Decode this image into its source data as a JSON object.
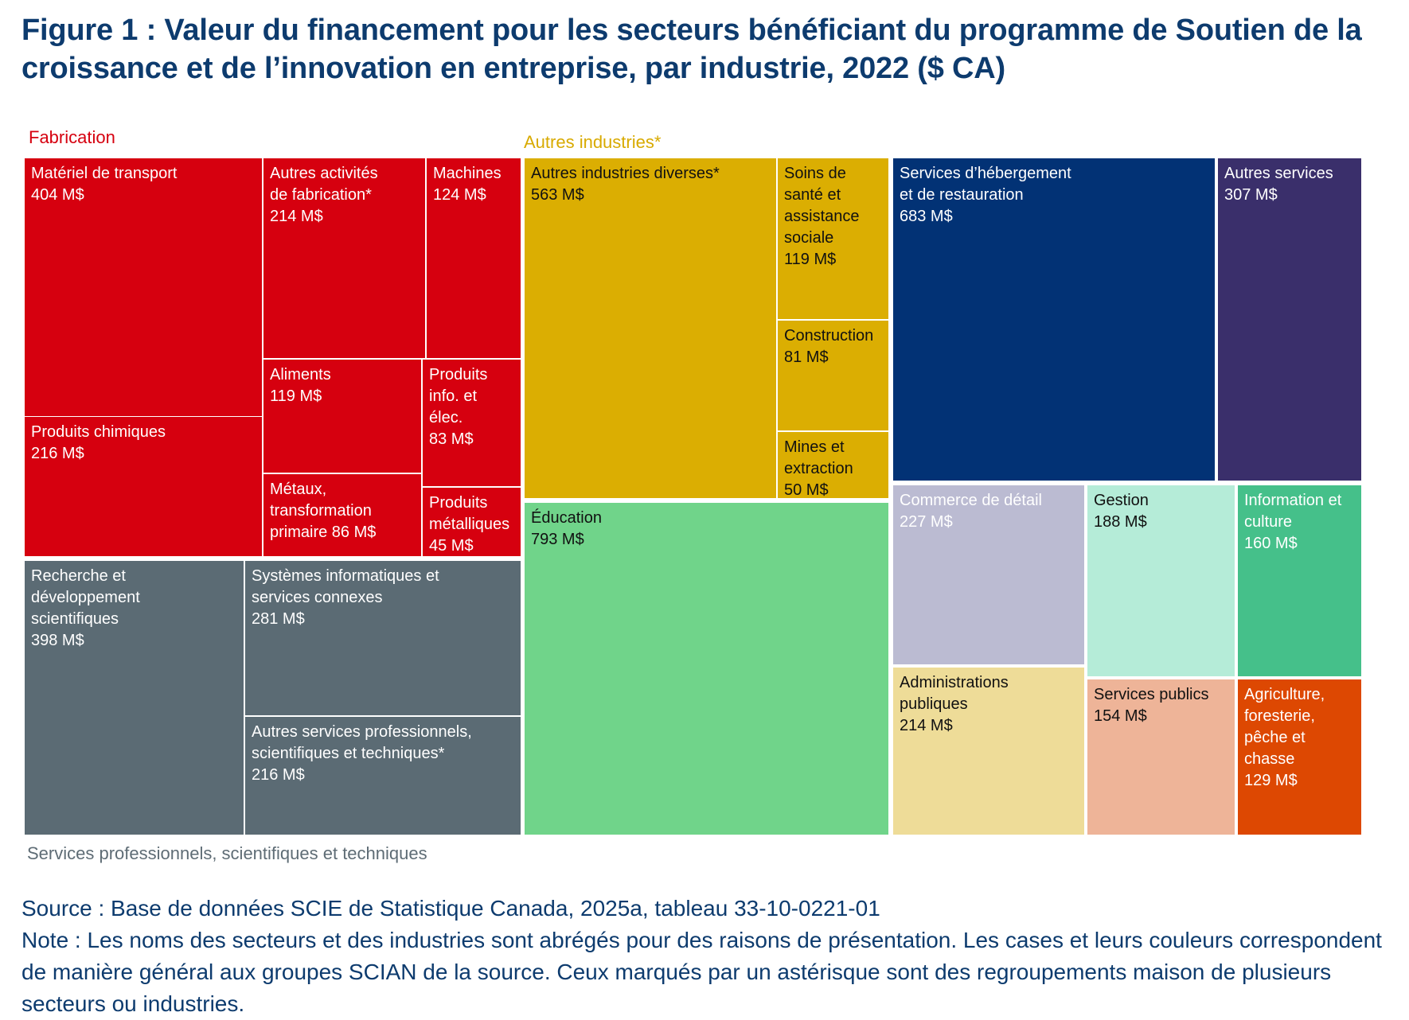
{
  "title": "Figure 1 : Valeur du financement pour les secteurs bénéficiant du programme de Soutien de la croissance et de l’innovation en entreprise, par industrie, 2022 ($ CA)",
  "source": "Source : Base de données SCIE de Statistique Canada, 2025a, tableau 33-10-0221-01",
  "note": "Note : Les noms des secteurs et des industries sont abrégés pour des raisons de présentation. Les cases et leurs couleurs correspondent de manière général aux groupes SCIAN de la source. Ceux marqués par un astérisque sont des regroupements maison de plusieurs secteurs ou industries.",
  "chart_data": {
    "type": "treemap",
    "unit": "M$",
    "groups": [
      {
        "id": "fabrication",
        "name": "Fabrication",
        "label_color": "#d6000f",
        "items": [
          {
            "id": "materiel-transport",
            "lines": [
              "Matériel de transport"
            ],
            "value_text": "404 M$",
            "value": 404,
            "color": "#d6000f",
            "text_color": "#ffffff"
          },
          {
            "id": "produits-chimiques",
            "lines": [
              "Produits chimiques"
            ],
            "value_text": "216 M$",
            "value": 216,
            "color": "#d6000f",
            "text_color": "#ffffff"
          },
          {
            "id": "autres-activites-fabrication",
            "lines": [
              "Autres activités",
              "de fabrication*"
            ],
            "value_text": "214 M$",
            "value": 214,
            "color": "#d6000f",
            "text_color": "#ffffff"
          },
          {
            "id": "machines",
            "lines": [
              "Machines"
            ],
            "value_text": "124 M$",
            "value": 124,
            "color": "#d6000f",
            "text_color": "#ffffff"
          },
          {
            "id": "aliments",
            "lines": [
              "Aliments"
            ],
            "value_text": "119 M$",
            "value": 119,
            "color": "#d6000f",
            "text_color": "#ffffff"
          },
          {
            "id": "produits-info-elec",
            "lines": [
              "Produits",
              "info. et élec."
            ],
            "value_text": "83 M$",
            "value": 83,
            "color": "#d6000f",
            "text_color": "#ffffff"
          },
          {
            "id": "metaux",
            "lines": [
              "Métaux,",
              "transformation"
            ],
            "value_text": "primaire 86 M$",
            "value": 86,
            "color": "#d6000f",
            "text_color": "#ffffff"
          },
          {
            "id": "produits-metalliques",
            "lines": [
              "Produits",
              "métalliques"
            ],
            "value_text": "45 M$",
            "value": 45,
            "color": "#d6000f",
            "text_color": "#ffffff"
          }
        ]
      },
      {
        "id": "services-professionnels",
        "name": "Services professionnels, scientifiques et techniques",
        "label_color": "#5e6c75",
        "items": [
          {
            "id": "recherche-developpement",
            "lines": [
              "Recherche et",
              "développement",
              "scientifiques"
            ],
            "value_text": "398 M$",
            "value": 398,
            "color": "#5b6b74",
            "text_color": "#ffffff"
          },
          {
            "id": "systemes-informatiques",
            "lines": [
              "Systèmes informatiques et",
              "services connexes"
            ],
            "value_text": "281 M$",
            "value": 281,
            "color": "#5b6b74",
            "text_color": "#ffffff"
          },
          {
            "id": "autres-services-professionnels",
            "lines": [
              "Autres services professionnels,",
              "scientifiques et techniques*"
            ],
            "value_text": "216 M$",
            "value": 216,
            "color": "#5b6b74",
            "text_color": "#ffffff"
          }
        ]
      },
      {
        "id": "autres-industries",
        "name": "Autres industries*",
        "label_color": "#d8aa00",
        "items": [
          {
            "id": "autres-industries-diverses",
            "lines": [
              "Autres industries diverses*"
            ],
            "value_text": "563 M$",
            "value": 563,
            "color": "#dbae02",
            "text_color": "#111111"
          },
          {
            "id": "soins-sante",
            "lines": [
              "Soins de",
              "santé et",
              "assistance",
              "sociale"
            ],
            "value_text": "119 M$",
            "value": 119,
            "color": "#dbae02",
            "text_color": "#111111"
          },
          {
            "id": "construction",
            "lines": [
              "Construction"
            ],
            "value_text": "81 M$",
            "value": 81,
            "color": "#dbae02",
            "text_color": "#111111"
          },
          {
            "id": "mines-extraction",
            "lines": [
              "Mines et",
              "extraction"
            ],
            "value_text": "50 M$",
            "value": 50,
            "color": "#dbae02",
            "text_color": "#111111"
          },
          {
            "id": "education",
            "lines": [
              "Éducation"
            ],
            "value_text": "793 M$",
            "value": 793,
            "color": "#70d48a",
            "text_color": "#111111"
          },
          {
            "id": "hebergement-restauration",
            "lines": [
              "Services d’hébergement",
              "et de restauration"
            ],
            "value_text": "683 M$",
            "value": 683,
            "color": "#023275",
            "text_color": "#ffffff"
          },
          {
            "id": "autres-services",
            "lines": [
              "Autres services"
            ],
            "value_text": "307 M$",
            "value": 307,
            "color": "#3a2f6b",
            "text_color": "#ffffff"
          },
          {
            "id": "commerce-detail",
            "lines": [
              "Commerce de détail"
            ],
            "value_text": "227 M$",
            "value": 227,
            "color": "#bbbbd2",
            "text_color": "#ffffff"
          },
          {
            "id": "gestion",
            "lines": [
              "Gestion"
            ],
            "value_text": "188 M$",
            "value": 188,
            "color": "#b5ecd8",
            "text_color": "#111111"
          },
          {
            "id": "information-culture",
            "lines": [
              "Information et",
              "culture"
            ],
            "value_text": "160 M$",
            "value": 160,
            "color": "#45c08a",
            "text_color": "#ffffff"
          },
          {
            "id": "administrations-publiques",
            "lines": [
              "Administrations",
              "publiques"
            ],
            "value_text": "214 M$",
            "value": 214,
            "color": "#eedc98",
            "text_color": "#111111"
          },
          {
            "id": "services-publics",
            "lines": [
              "Services publics"
            ],
            "value_text": "154 M$",
            "value": 154,
            "color": "#eeb498",
            "text_color": "#111111"
          },
          {
            "id": "agriculture",
            "lines": [
              "Agriculture,",
              "foresterie,",
              "pêche et",
              "chasse"
            ],
            "value_text": "129 M$",
            "value": 129,
            "color": "#dd4802",
            "text_color": "#ffffff"
          }
        ]
      }
    ]
  }
}
